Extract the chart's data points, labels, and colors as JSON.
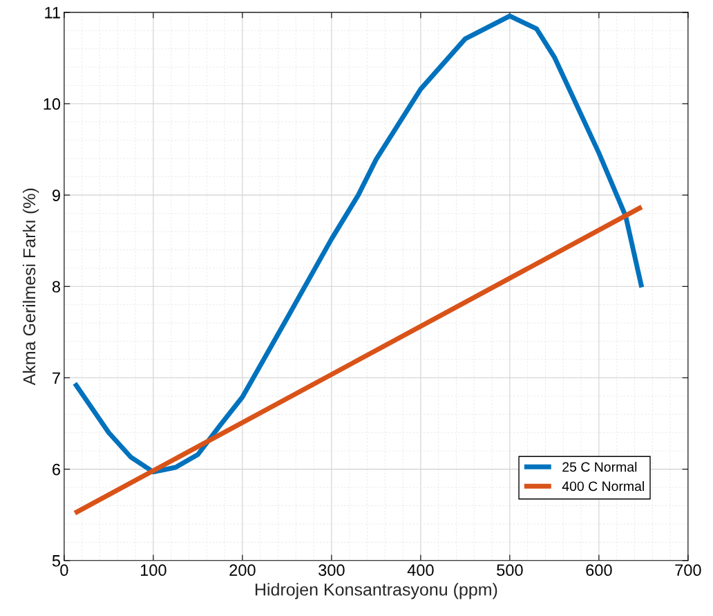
{
  "chart_data": {
    "type": "line",
    "xlabel": "Hidrojen Konsantrasyonu (ppm)",
    "ylabel": "Akma Gerilmesi Farkı (%)",
    "xlim": [
      0,
      700
    ],
    "xticks": [
      0,
      100,
      200,
      300,
      400,
      500,
      600,
      700
    ],
    "ylim": [
      5,
      11
    ],
    "yticks": [
      5,
      6,
      7,
      8,
      9,
      10,
      11
    ],
    "grid": true,
    "legend": "bottom right",
    "line_style": "solid",
    "marker": "none",
    "series": [
      {
        "name": "25 C Normal",
        "color": "#0072bd",
        "x": [
          12,
          50,
          75,
          100,
          125,
          150,
          175,
          200,
          250,
          300,
          330,
          350,
          400,
          450,
          500,
          530,
          550,
          600,
          630,
          648
        ],
        "values": [
          6.94,
          6.4,
          6.13,
          5.97,
          6.02,
          6.16,
          6.48,
          6.79,
          7.65,
          8.52,
          9.0,
          9.39,
          10.16,
          10.71,
          10.96,
          10.82,
          10.51,
          9.46,
          8.77,
          7.99
        ]
      },
      {
        "name": "400 C Normal",
        "color": "#d95319",
        "x": [
          12,
          648
        ],
        "values": [
          5.52,
          8.87
        ]
      }
    ]
  }
}
